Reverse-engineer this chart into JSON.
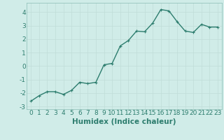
{
  "x": [
    0,
    1,
    2,
    3,
    4,
    5,
    6,
    7,
    8,
    9,
    10,
    11,
    12,
    13,
    14,
    15,
    16,
    17,
    18,
    19,
    20,
    21,
    22,
    23
  ],
  "y": [
    -2.6,
    -2.2,
    -1.9,
    -1.9,
    -2.1,
    -1.8,
    -1.2,
    -1.3,
    -1.2,
    0.1,
    0.2,
    1.5,
    1.9,
    2.6,
    2.55,
    3.2,
    4.2,
    4.1,
    3.3,
    2.6,
    2.5,
    3.1,
    2.9,
    2.9
  ],
  "line_color": "#2d7d6e",
  "marker": "+",
  "marker_size": 3,
  "line_width": 1.0,
  "xlabel": "Humidex (Indice chaleur)",
  "xlim": [
    -0.5,
    23.5
  ],
  "ylim": [
    -3.2,
    4.7
  ],
  "yticks": [
    -3,
    -2,
    -1,
    0,
    1,
    2,
    3,
    4
  ],
  "xticks": [
    0,
    1,
    2,
    3,
    4,
    5,
    6,
    7,
    8,
    9,
    10,
    11,
    12,
    13,
    14,
    15,
    16,
    17,
    18,
    19,
    20,
    21,
    22,
    23
  ],
  "grid_color": "#c0ddd8",
  "bg_color": "#d0ece8",
  "tick_label_size": 6.5,
  "xlabel_size": 7.5,
  "tick_color": "#2d7d6e",
  "spine_color": "#8abdb5"
}
